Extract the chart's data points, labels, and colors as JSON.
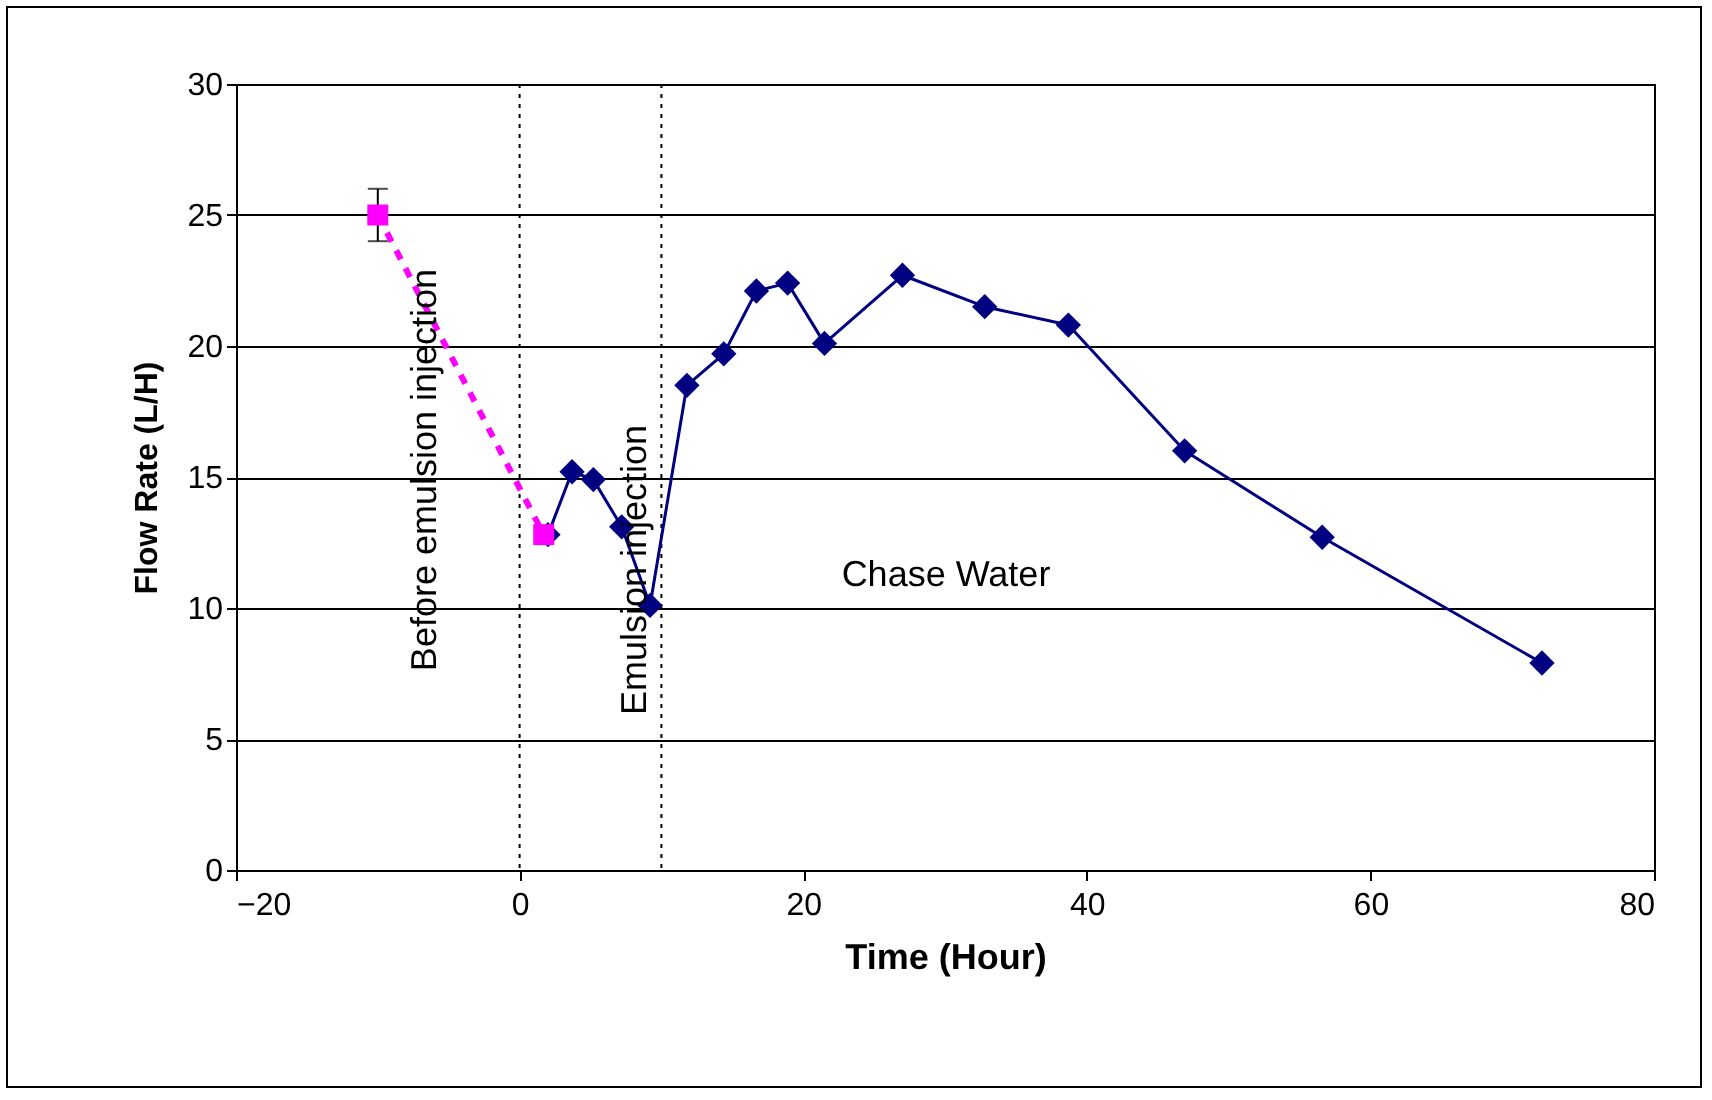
{
  "chart_data": {
    "type": "line",
    "xlabel": "Time (Hour)",
    "ylabel": "Flow Rate (L/H)",
    "xlim": [
      -20,
      80
    ],
    "xticks": [
      -20,
      0,
      20,
      40,
      60,
      80
    ],
    "ylim": [
      0,
      30
    ],
    "yticks": [
      0,
      5,
      10,
      15,
      20,
      25,
      30
    ],
    "grid": "y",
    "series": [
      {
        "x": [
          -10,
          1.7
        ],
        "values": [
          25,
          12.8
        ],
        "color": "#ff00ff",
        "marker": "square",
        "line_style": "dashed",
        "errors": [
          1,
          null
        ]
      },
      {
        "x": [
          2.0,
          3.7,
          5.2,
          7.2,
          9.2,
          11.8,
          14.4,
          16.7,
          18.9,
          21.5,
          27.0,
          32.8,
          38.7,
          46.9,
          56.6,
          72.1
        ],
        "values": [
          12.8,
          15.2,
          14.9,
          13.1,
          10.1,
          18.5,
          19.7,
          22.1,
          22.4,
          20.1,
          22.7,
          21.5,
          20.8,
          16.0,
          12.7,
          7.9
        ],
        "color": "#000080",
        "marker": "diamond",
        "line_style": "solid"
      }
    ],
    "ref_lines": [
      {
        "axis": "x",
        "value": 0,
        "line_style": "dotted",
        "color": "#000000"
      },
      {
        "axis": "x",
        "value": 10,
        "line_style": "dotted",
        "color": "#000000"
      }
    ],
    "annotations": [
      "Before emulsion injection",
      "Emulsion injection",
      "Chase Water"
    ]
  }
}
